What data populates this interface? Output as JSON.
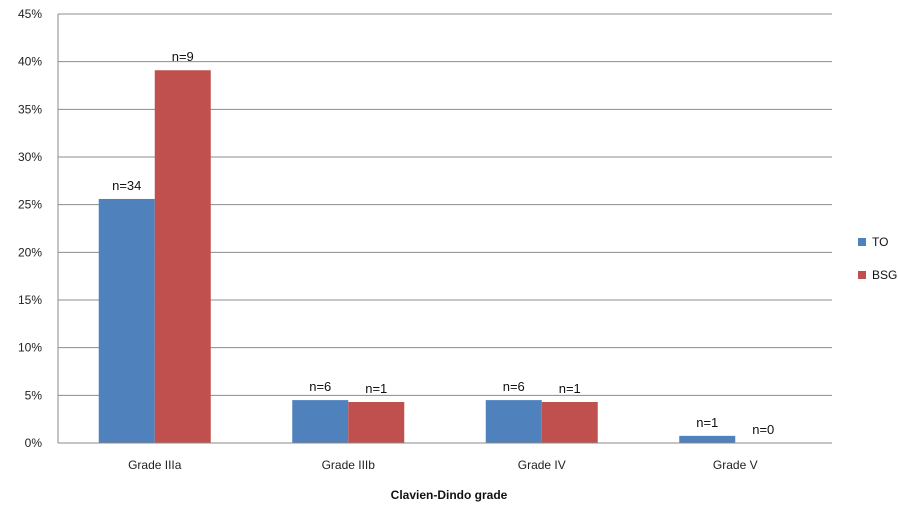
{
  "chart_data": {
    "type": "bar",
    "title": "",
    "xlabel": "Clavien-Dindo grade",
    "ylabel": "",
    "categories": [
      "Grade IIIa",
      "Grade IIIb",
      "Grade IV",
      "Grade V"
    ],
    "series": [
      {
        "name": "TO",
        "color": "#4f81bd",
        "values": [
          25.6,
          4.5,
          4.5,
          0.75
        ],
        "labels": [
          "n=34",
          "n=6",
          "n=6",
          "n=1"
        ]
      },
      {
        "name": "BSG",
        "color": "#c0504d",
        "values": [
          39.1,
          4.3,
          4.3,
          0
        ],
        "labels": [
          "n=9",
          "n=1",
          "n=1",
          "n=0"
        ]
      }
    ],
    "ylim": [
      0,
      45
    ],
    "yticks": [
      0,
      5,
      10,
      15,
      20,
      25,
      30,
      35,
      40,
      45
    ],
    "ytick_labels": [
      "0%",
      "5%",
      "10%",
      "15%",
      "20%",
      "25%",
      "30%",
      "35%",
      "40%",
      "45%"
    ],
    "grid": true,
    "legend": "right"
  }
}
